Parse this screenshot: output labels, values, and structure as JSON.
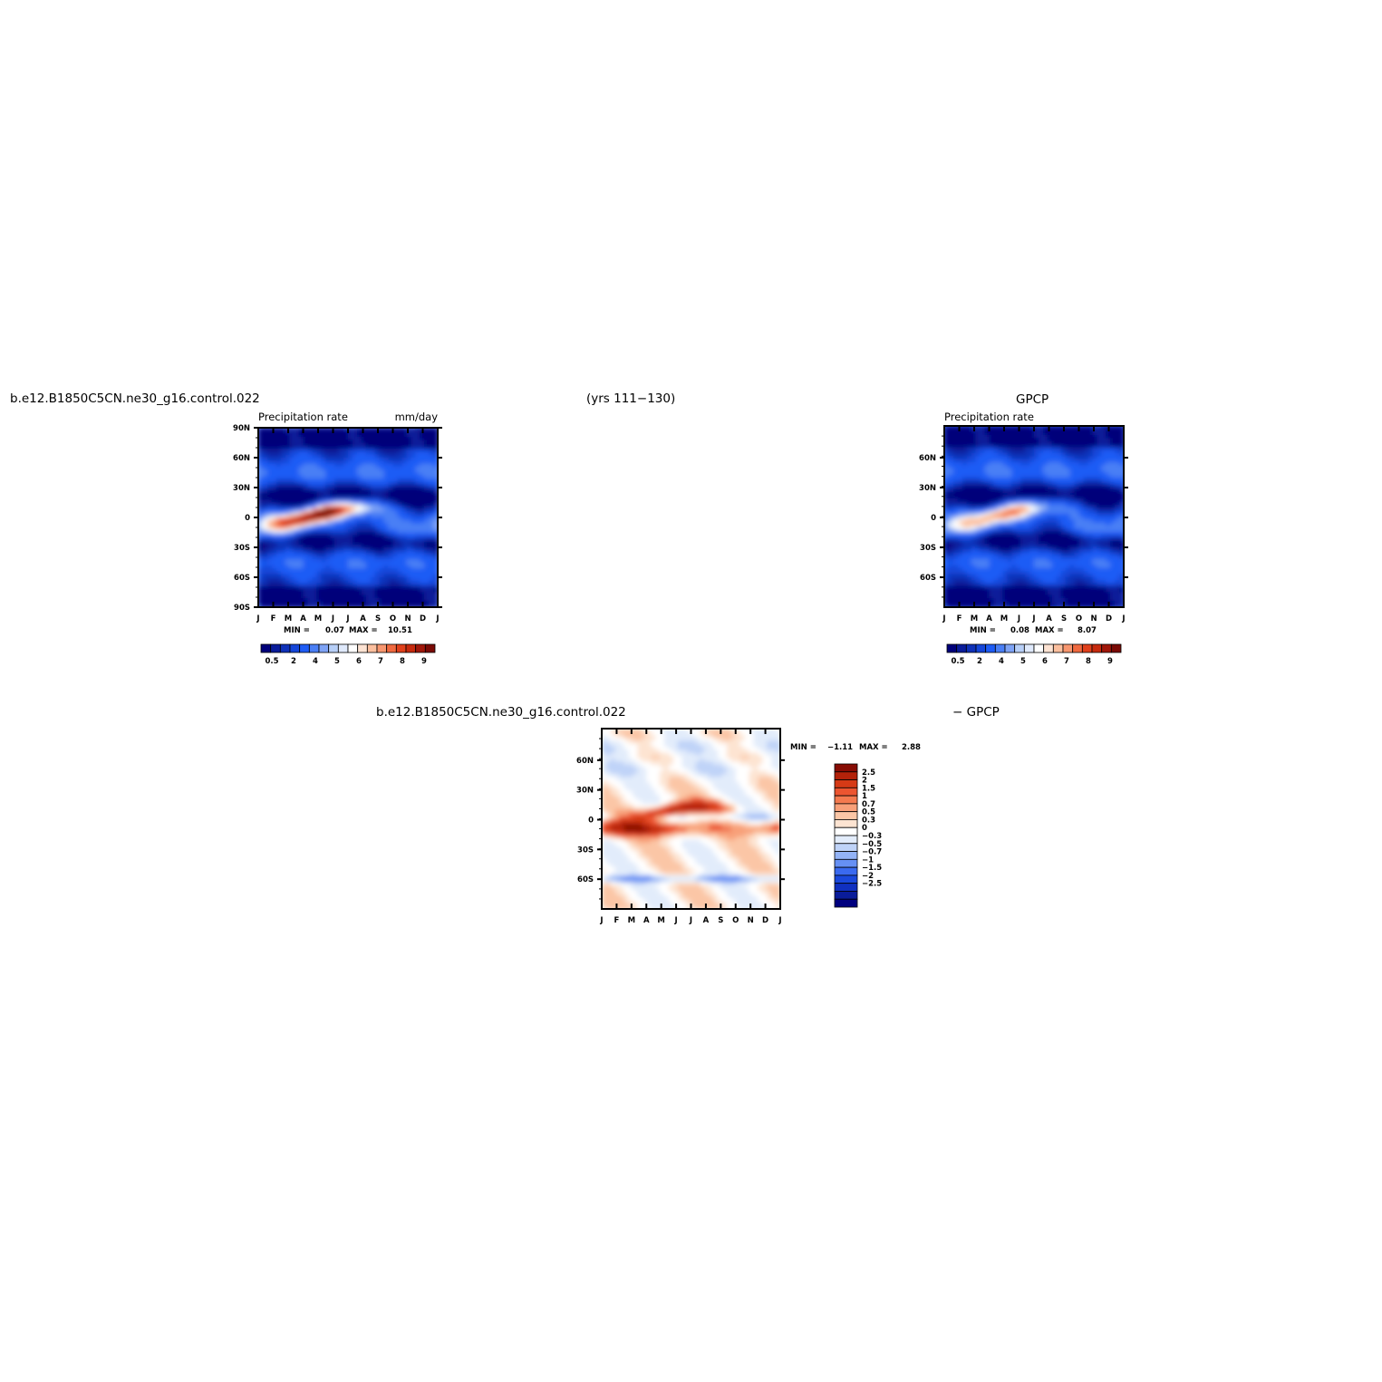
{
  "header": {
    "case_name": "b.e12.B1850C5CN.ne30_g16.control.022",
    "years": "(yrs 111−130)",
    "obs_title": "GPCP"
  },
  "diff_header": {
    "case_name": "b.e12.B1850C5CN.ne30_g16.control.022",
    "minus_obs": "− GPCP"
  },
  "colors": {
    "precip_palette": [
      "#00007a",
      "#0a1c9a",
      "#0f31b8",
      "#1546d9",
      "#1e5cf5",
      "#4a7ff5",
      "#7ea3f5",
      "#b7cff7",
      "#dfe9fb",
      "#ffffff",
      "#fde3d3",
      "#fbbf9e",
      "#f7966f",
      "#f0693f",
      "#e0401b",
      "#c62a0e",
      "#a0170a",
      "#7a0a05"
    ],
    "diff_palette": [
      "#00007f",
      "#0a1c9a",
      "#1030c0",
      "#1a48dc",
      "#3a6af0",
      "#6690f4",
      "#93b3f6",
      "#bfd3f8",
      "#e2ecfb",
      "#ffffff",
      "#fde4d2",
      "#fbc6a6",
      "#f8a079",
      "#f47a4f",
      "#ec5530",
      "#d63a16",
      "#b3220a",
      "#870c04"
    ]
  },
  "chart_data": [
    {
      "type": "heatmap",
      "title": "Precipitation rate",
      "units": "mm/day",
      "x_categories": [
        "J",
        "F",
        "M",
        "A",
        "M",
        "J",
        "J",
        "A",
        "S",
        "O",
        "N",
        "D",
        "J"
      ],
      "y_ticks": [
        "90N",
        "60N",
        "30N",
        "0",
        "30S",
        "60S",
        "90S"
      ],
      "ylim": [
        -90,
        90
      ],
      "stats": {
        "min_label": "MIN =",
        "min": "0.07",
        "max_label": "MAX =",
        "max": "10.51"
      },
      "colorbar_labels": [
        "0.5",
        "2",
        "4",
        "5",
        "6",
        "7",
        "8",
        "9"
      ],
      "colorbar_orientation": "horizontal",
      "peak_value_mm_day": 10.51,
      "itcz_seasonal_latitude": [
        2,
        1,
        -1,
        -2,
        1,
        4,
        7,
        9,
        10,
        9,
        7,
        5,
        3
      ]
    },
    {
      "type": "heatmap",
      "title": "Precipitation rate",
      "units": "",
      "x_categories": [
        "J",
        "F",
        "M",
        "A",
        "M",
        "J",
        "J",
        "A",
        "S",
        "O",
        "N",
        "D",
        "J"
      ],
      "y_ticks": [
        "60N",
        "30N",
        "0",
        "30S",
        "60S"
      ],
      "ylim": [
        -90,
        90
      ],
      "stats": {
        "min_label": "MIN =",
        "min": "0.08",
        "max_label": "MAX =",
        "max": "8.07"
      },
      "colorbar_labels": [
        "0.5",
        "2",
        "4",
        "5",
        "6",
        "7",
        "8",
        "9"
      ],
      "colorbar_orientation": "horizontal",
      "peak_value_mm_day": 8.07,
      "itcz_seasonal_latitude": [
        2,
        1,
        -1,
        -2,
        1,
        4,
        7,
        9,
        10,
        9,
        7,
        5,
        3
      ]
    },
    {
      "type": "heatmap",
      "title": "",
      "units": "",
      "x_categories": [
        "J",
        "F",
        "M",
        "A",
        "M",
        "J",
        "J",
        "A",
        "S",
        "O",
        "N",
        "D",
        "J"
      ],
      "y_ticks": [
        "60N",
        "30N",
        "0",
        "30S",
        "60S"
      ],
      "ylim": [
        -90,
        90
      ],
      "stats": {
        "min_label": "MIN =",
        "min": "−1.11",
        "max_label": "MAX =",
        "max": "2.88"
      },
      "colorbar_labels": [
        "2.5",
        "2",
        "1.5",
        "1",
        "0.7",
        "0.5",
        "0.3",
        "0",
        "−0.3",
        "−0.5",
        "−0.7",
        "−1",
        "−1.5",
        "−2",
        "−2.5"
      ],
      "colorbar_orientation": "vertical"
    }
  ]
}
